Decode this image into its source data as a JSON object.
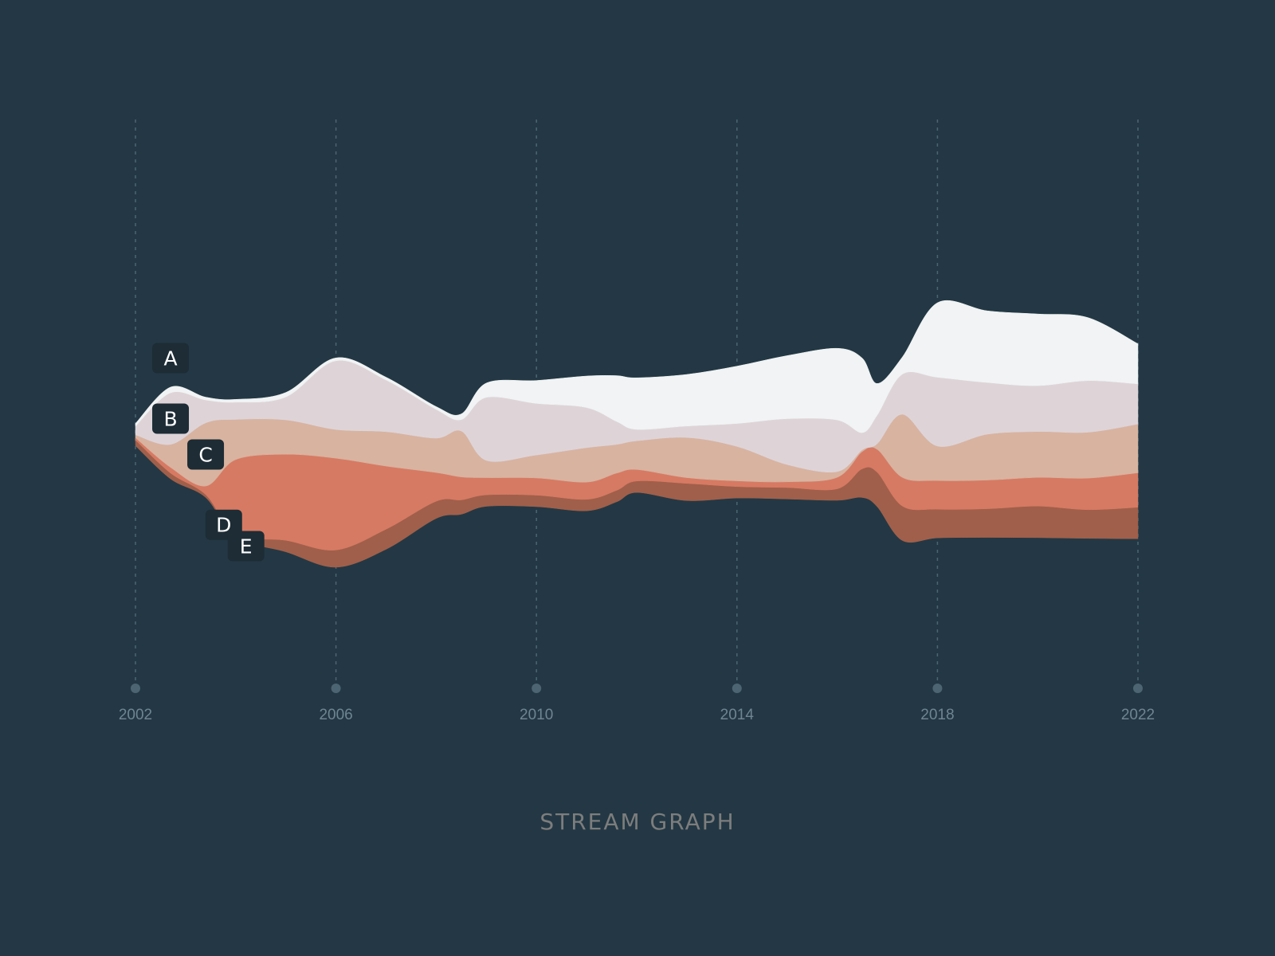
{
  "chart_data": {
    "type": "area",
    "title": "STREAM GRAPH",
    "xlabel": "",
    "ylabel": "",
    "baseline": "wiggle",
    "grid": "vertical dotted lines at tick years",
    "legend": "inline labels",
    "x": [
      2002,
      2002.7,
      2003.4,
      2004,
      2005,
      2006,
      2007,
      2008,
      2008.5,
      2009,
      2010,
      2011,
      2011.6,
      2012,
      2013,
      2014,
      2015,
      2016,
      2016.5,
      2016.8,
      2017.3,
      2018,
      2019,
      2020,
      2021,
      2022
    ],
    "x_ticks": [
      "2002",
      "2006",
      "2010",
      "2014",
      "2018",
      "2022"
    ],
    "series": [
      {
        "name": "A",
        "color": "#f1f3f4",
        "values": [
          0.5,
          1,
          0.5,
          0.5,
          0.8,
          0.5,
          0.5,
          0.5,
          1,
          2.5,
          4,
          5.5,
          8,
          9,
          9,
          10,
          11,
          12.5,
          13,
          5.5,
          3,
          13,
          12.5,
          12.5,
          11,
          7
        ]
      },
      {
        "name": "B",
        "color": "#ded4d8",
        "values": [
          1.5,
          9,
          4,
          3,
          4,
          12,
          9,
          5,
          2,
          11,
          9,
          7,
          4,
          2,
          2,
          4,
          8,
          9,
          3,
          5,
          7,
          12,
          9,
          8,
          9,
          7
        ]
      },
      {
        "name": "C",
        "color": "#d8b3a0",
        "values": [
          0.5,
          4,
          11,
          7,
          6,
          5,
          6,
          6,
          8,
          3,
          4,
          6,
          5,
          5,
          7,
          6,
          3,
          1,
          0.3,
          1,
          11,
          6,
          8,
          8,
          8,
          8.5
        ]
      },
      {
        "name": "D",
        "color": "#d77a63",
        "values": [
          0.4,
          1,
          1.5,
          13,
          15,
          16,
          11,
          5,
          4,
          3,
          3,
          3,
          3,
          2,
          1,
          1,
          1,
          2,
          3,
          4,
          5,
          5,
          5,
          5,
          5.5,
          6
        ]
      },
      {
        "name": "E",
        "color": "#a05f4a",
        "values": [
          1,
          1,
          0.5,
          0.5,
          2,
          3,
          3.5,
          3,
          2.5,
          2,
          2,
          2,
          2,
          2,
          3,
          2,
          2,
          2,
          5,
          6,
          6,
          5,
          5,
          5.5,
          5,
          5.5
        ]
      }
    ]
  }
}
